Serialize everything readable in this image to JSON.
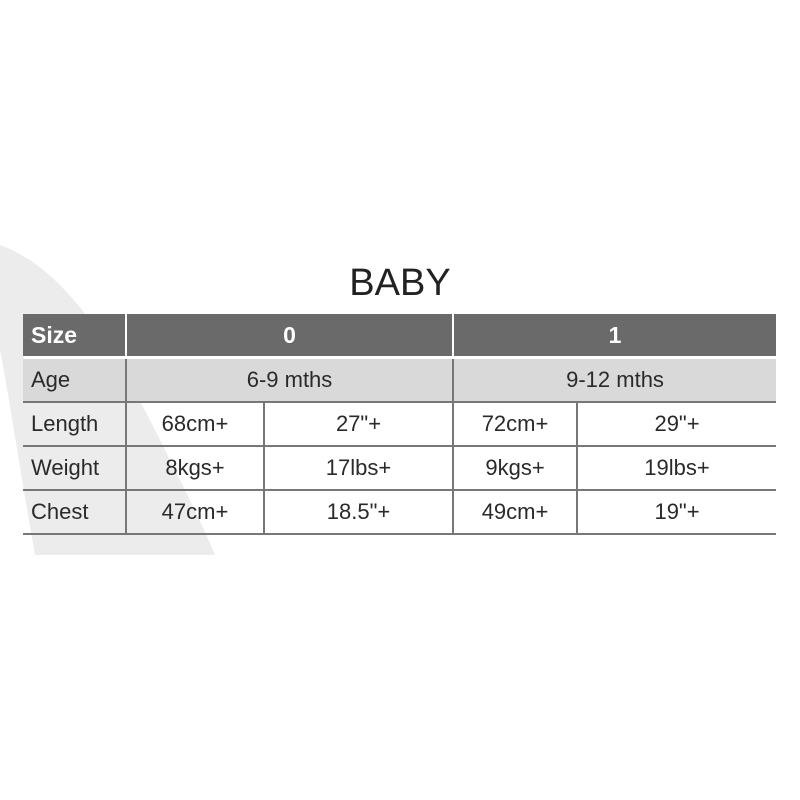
{
  "title": "BABY",
  "table": {
    "header": {
      "label": "Size",
      "sizes": [
        "0",
        "1"
      ]
    },
    "age": {
      "label": "Age",
      "values": [
        "6-9 mths",
        "9-12 mths"
      ]
    },
    "rows": [
      {
        "label": "Length",
        "values": [
          "68cm+",
          "27\"+",
          "72cm+",
          "29\"+"
        ]
      },
      {
        "label": "Weight",
        "values": [
          "8kgs+",
          "17lbs+",
          "9kgs+",
          "19lbs+"
        ]
      },
      {
        "label": "Chest",
        "values": [
          "47cm+",
          "18.5\"+",
          "49cm+",
          "19\"+"
        ]
      }
    ]
  },
  "colors": {
    "header_bg": "#6a6a6a",
    "age_bg": "#d9d9d9",
    "swoosh": "#ececec"
  }
}
